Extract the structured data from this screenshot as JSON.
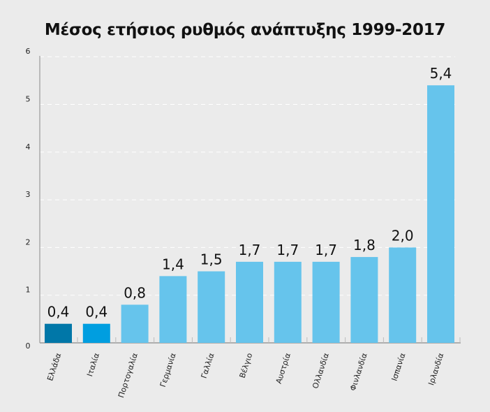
{
  "chart_data": {
    "type": "bar",
    "title": "Μέσος ετήσιος  ρυθμός ανάπτυξης 1999-2017",
    "xlabel": "",
    "ylabel": "",
    "ylim": [
      0,
      6
    ],
    "yticks": [
      0,
      1,
      2,
      3,
      4,
      5,
      6
    ],
    "grid": true,
    "categories": [
      "Ελλάδα",
      "Ιταλία",
      "Πορτογαλία",
      "Γερμανία",
      "Γαλλία",
      "Βέλγιο",
      "Αυστρία",
      "Ολλανδία",
      "Φινλανδία",
      "Ισπανία",
      "Ιρλανδία"
    ],
    "values": [
      0.4,
      0.4,
      0.8,
      1.4,
      1.5,
      1.7,
      1.7,
      1.7,
      1.8,
      2.0,
      5.4
    ],
    "data_labels": [
      "0,4",
      "0,4",
      "0,8",
      "1,4",
      "1,5",
      "1,7",
      "1,7",
      "1,7",
      "1,8",
      "2,0",
      "5,4"
    ],
    "colors": [
      "#0077a8",
      "#009ee0",
      "#66c4ec",
      "#66c4ec",
      "#66c4ec",
      "#66c4ec",
      "#66c4ec",
      "#66c4ec",
      "#66c4ec",
      "#66c4ec",
      "#66c4ec"
    ]
  }
}
